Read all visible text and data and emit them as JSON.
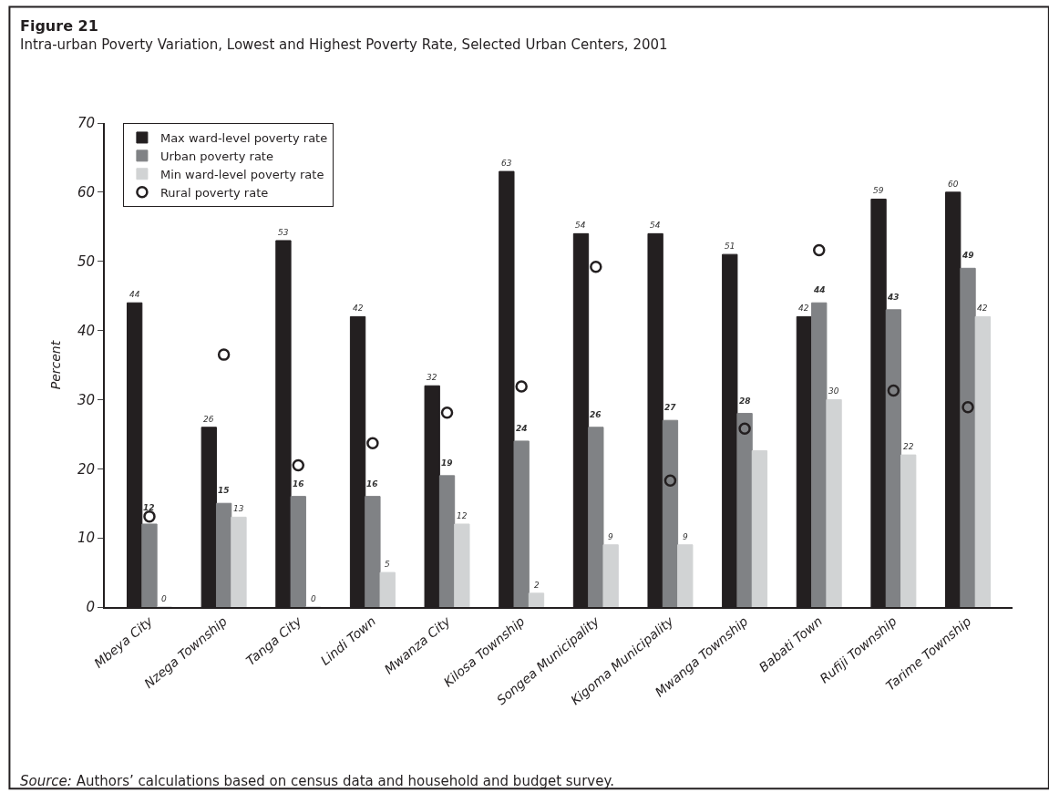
{
  "chart_data": {
    "type": "bar",
    "title": "Figure 21",
    "subtitle": "Intra-urban Poverty Variation, Lowest and Highest Poverty Rate, Selected Urban Centers, 2001",
    "ylabel": "Percent",
    "categories": [
      "Mbeya City",
      "Nzega Township",
      "Tanga City",
      "Lindi Town",
      "Mwanza City",
      "Kilosa Township",
      "Songea Municipality",
      "Kigoma Municipality",
      "Mwanga Township",
      "Babati Town",
      "Rufiji Township",
      "Tarime Township"
    ],
    "series": [
      {
        "name": "Max ward-level poverty rate",
        "color": "#231f20",
        "values": [
          44,
          26,
          53,
          42,
          32,
          63,
          54,
          54,
          51,
          42,
          59,
          60
        ],
        "value_labels": [
          "44",
          "26",
          "53",
          "42",
          "32",
          "63",
          "54",
          "54",
          "51",
          "42",
          "59",
          "60"
        ]
      },
      {
        "name": "Urban poverty rate",
        "color": "#808285",
        "values": [
          12,
          15,
          16,
          16,
          19,
          24,
          26,
          27,
          28,
          44,
          43,
          49
        ],
        "value_labels": [
          "12",
          "15",
          "16",
          "16",
          "19",
          "24",
          "26",
          "27",
          "28",
          "44",
          "43",
          "49"
        ]
      },
      {
        "name": "Min ward-level poverty rate",
        "color": "#d1d3d4",
        "values": [
          0,
          13,
          0,
          5,
          12,
          2,
          9,
          9,
          22.6,
          30,
          22,
          42
        ],
        "value_labels": [
          "0",
          "13",
          "0",
          "5",
          "12",
          "2",
          "9",
          "9",
          null,
          "30",
          "22",
          "42"
        ]
      },
      {
        "name": "Rural poverty rate",
        "type": "scatter",
        "color": "#231f20",
        "marker": "circle",
        "values": [
          13.1,
          36.5,
          20.5,
          23.7,
          28.1,
          31.9,
          49.2,
          18.3,
          25.8,
          51.6,
          31.3,
          28.9
        ]
      }
    ],
    "ylim": [
      0,
      70
    ],
    "yticks": [
      0,
      10,
      20,
      30,
      40,
      50,
      60,
      70
    ],
    "legend": "top left",
    "annotations": [
      "Source: Authors’ calculations based on census data and household and budget survey."
    ]
  }
}
